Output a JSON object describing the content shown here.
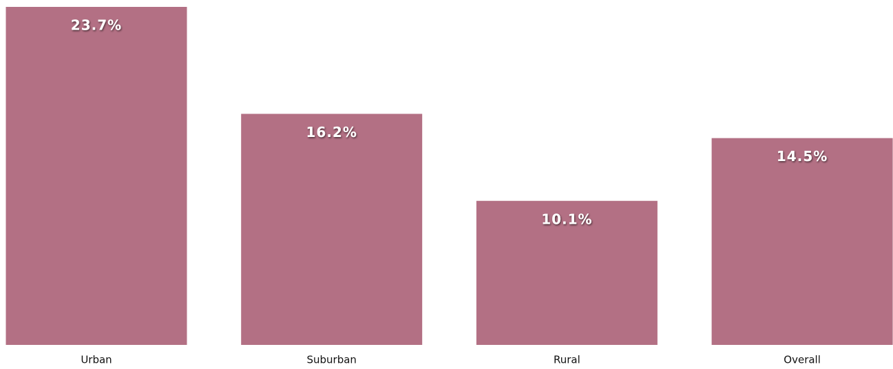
{
  "chart_data": {
    "type": "bar",
    "categories": [
      "Urban",
      "Suburban",
      "Rural",
      "Overall"
    ],
    "values": [
      23.7,
      16.2,
      10.1,
      14.5
    ],
    "value_labels": [
      "23.7%",
      "16.2%",
      "10.1%",
      "14.5%"
    ],
    "color": "#b37084"
  }
}
